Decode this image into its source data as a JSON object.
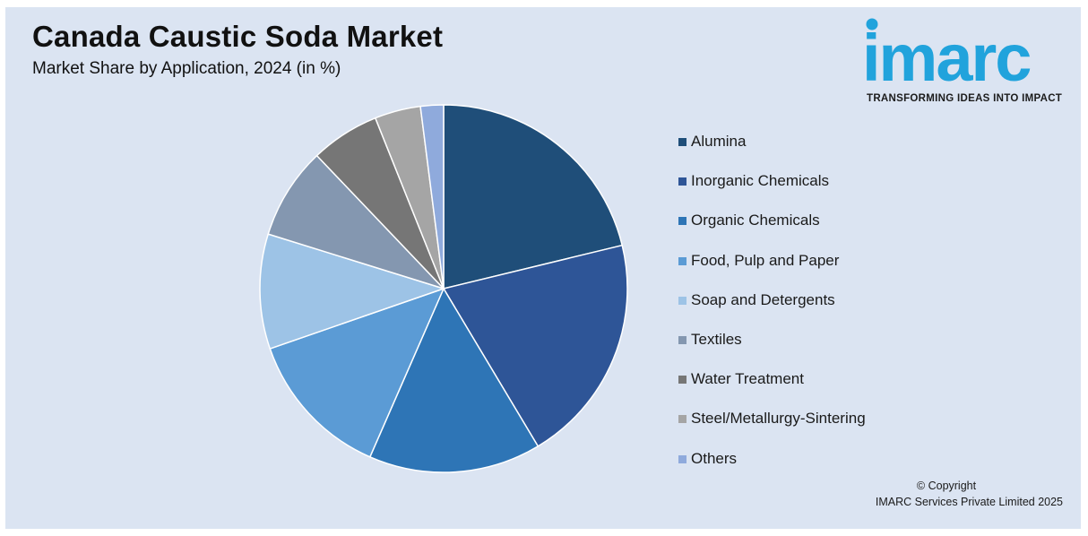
{
  "header": {
    "title": "Canada Caustic Soda Market",
    "subtitle": "Market Share by Application, 2024 (in %)"
  },
  "logo": {
    "wordmark": "imarc",
    "tagline": "TRANSFORMING IDEAS INTO IMPACT"
  },
  "chart_data": {
    "type": "pie",
    "title": "Canada Caustic Soda Market",
    "subtitle": "Market Share by Application, 2024 (in %)",
    "legend_position": "right",
    "labels": [
      "Alumina",
      "Inorganic Chemicals",
      "Organic Chemicals",
      "Food, Pulp and Paper",
      "Soap and Detergents",
      "Textiles",
      "Water Treatment",
      "Steel/Metallurgy-Sintering",
      "Others"
    ],
    "values": [
      21,
      20,
      15,
      13,
      10,
      8,
      6,
      4,
      2
    ],
    "colors": [
      "#1f4e79",
      "#2e5597",
      "#2e75b6",
      "#5b9bd5",
      "#9dc3e6",
      "#8497b0",
      "#767676",
      "#a5a5a5",
      "#8faadc"
    ],
    "start_angle_deg": 0,
    "direction": "clockwise"
  },
  "footer": {
    "copyright_line1": "© Copyright",
    "copyright_line2": "IMARC Services Private Limited 2025"
  }
}
